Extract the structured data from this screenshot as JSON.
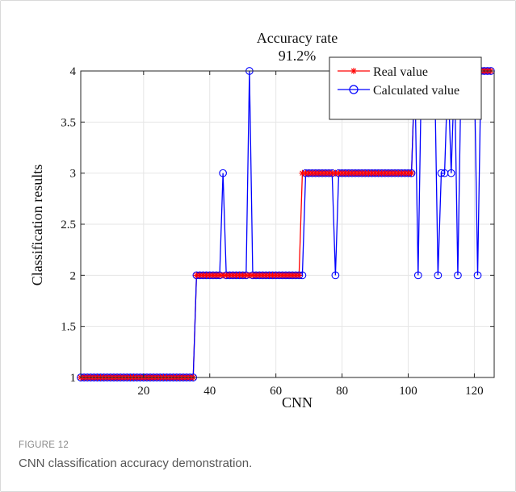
{
  "figure": {
    "label": "FIGURE 12",
    "caption": "CNN classification accuracy demonstration."
  },
  "chart_data": {
    "type": "line",
    "title": "Accuracy rate",
    "subtitle": "91.2%",
    "xlabel": "CNN",
    "ylabel": "Classification results",
    "xlim": [
      1,
      126
    ],
    "ylim": [
      1,
      4
    ],
    "xticks": [
      20,
      40,
      60,
      80,
      100,
      120
    ],
    "yticks": [
      1,
      1.5,
      2,
      2.5,
      3,
      3.5,
      4
    ],
    "ytick_labels": [
      "1",
      "1.5",
      "2",
      "2.5",
      "3",
      "3.5",
      "4"
    ],
    "grid": true,
    "legend_position": "top-right",
    "x": [
      1,
      2,
      3,
      4,
      5,
      6,
      7,
      8,
      9,
      10,
      11,
      12,
      13,
      14,
      15,
      16,
      17,
      18,
      19,
      20,
      21,
      22,
      23,
      24,
      25,
      26,
      27,
      28,
      29,
      30,
      31,
      32,
      33,
      34,
      35,
      36,
      37,
      38,
      39,
      40,
      41,
      42,
      43,
      44,
      45,
      46,
      47,
      48,
      49,
      50,
      51,
      52,
      53,
      54,
      55,
      56,
      57,
      58,
      59,
      60,
      61,
      62,
      63,
      64,
      65,
      66,
      67,
      68,
      69,
      70,
      71,
      72,
      73,
      74,
      75,
      76,
      77,
      78,
      79,
      80,
      81,
      82,
      83,
      84,
      85,
      86,
      87,
      88,
      89,
      90,
      91,
      92,
      93,
      94,
      95,
      96,
      97,
      98,
      99,
      100,
      101,
      102,
      103,
      104,
      105,
      106,
      107,
      108,
      109,
      110,
      111,
      112,
      113,
      114,
      115,
      116,
      117,
      118,
      119,
      120,
      121,
      122,
      123,
      124,
      125
    ],
    "series": [
      {
        "name": "Real value",
        "color": "#ff0000",
        "marker": "asterisk",
        "values": [
          1,
          1,
          1,
          1,
          1,
          1,
          1,
          1,
          1,
          1,
          1,
          1,
          1,
          1,
          1,
          1,
          1,
          1,
          1,
          1,
          1,
          1,
          1,
          1,
          1,
          1,
          1,
          1,
          1,
          1,
          1,
          1,
          1,
          1,
          1,
          2,
          2,
          2,
          2,
          2,
          2,
          2,
          2,
          2,
          2,
          2,
          2,
          2,
          2,
          2,
          2,
          2,
          2,
          2,
          2,
          2,
          2,
          2,
          2,
          2,
          2,
          2,
          2,
          2,
          2,
          2,
          2,
          3,
          3,
          3,
          3,
          3,
          3,
          3,
          3,
          3,
          3,
          3,
          3,
          3,
          3,
          3,
          3,
          3,
          3,
          3,
          3,
          3,
          3,
          3,
          3,
          3,
          3,
          3,
          3,
          3,
          3,
          3,
          3,
          3,
          3,
          4,
          4,
          4,
          4,
          4,
          4,
          4,
          4,
          4,
          4,
          4,
          4,
          4,
          4,
          4,
          4,
          4,
          4,
          4,
          4,
          4,
          4,
          4,
          4
        ]
      },
      {
        "name": "Calculated value",
        "color": "#0000ff",
        "marker": "circle",
        "values": [
          1,
          1,
          1,
          1,
          1,
          1,
          1,
          1,
          1,
          1,
          1,
          1,
          1,
          1,
          1,
          1,
          1,
          1,
          1,
          1,
          1,
          1,
          1,
          1,
          1,
          1,
          1,
          1,
          1,
          1,
          1,
          1,
          1,
          1,
          1,
          2,
          2,
          2,
          2,
          2,
          2,
          2,
          2,
          3,
          2,
          2,
          2,
          2,
          2,
          2,
          2,
          4,
          2,
          2,
          2,
          2,
          2,
          2,
          2,
          2,
          2,
          2,
          2,
          2,
          2,
          2,
          2,
          2,
          3,
          3,
          3,
          3,
          3,
          3,
          3,
          3,
          3,
          2,
          3,
          3,
          3,
          3,
          3,
          3,
          3,
          3,
          3,
          3,
          3,
          3,
          3,
          3,
          3,
          3,
          3,
          3,
          3,
          3,
          3,
          3,
          3,
          4,
          2,
          4,
          4,
          4,
          4,
          4,
          2,
          3,
          3,
          4,
          3,
          4,
          2,
          4,
          4,
          4,
          4,
          4,
          2,
          4,
          4,
          4,
          4
        ]
      }
    ]
  }
}
